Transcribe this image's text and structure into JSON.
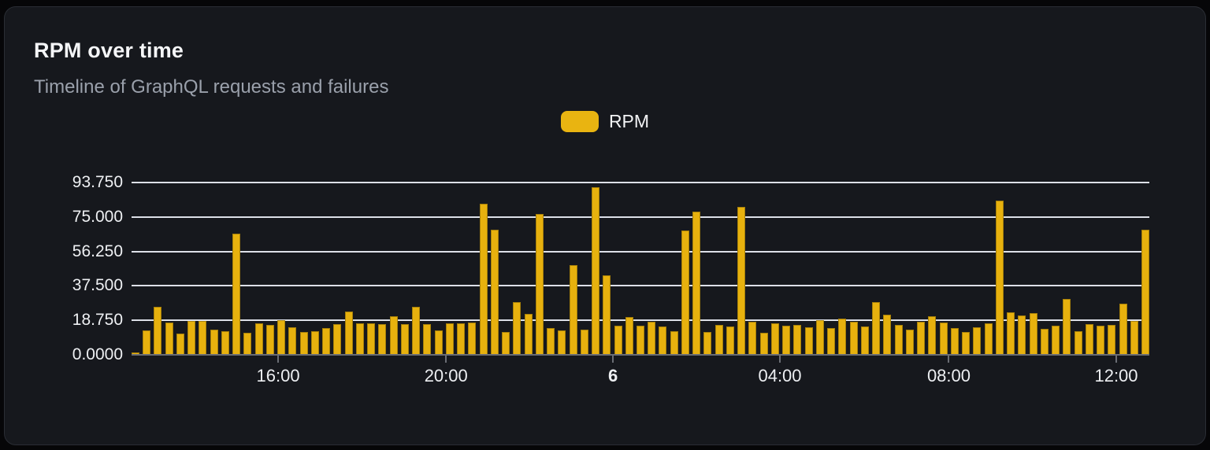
{
  "header": {
    "title": "RPM over time",
    "subtitle": "Timeline of GraphQL requests and failures"
  },
  "legend": {
    "items": [
      {
        "label": "RPM",
        "color": "#e9b411"
      }
    ]
  },
  "colors": {
    "card_background": "#16181d",
    "card_border": "#2a2d34",
    "page_background": "#060608",
    "bar": "#e7b10e",
    "gridline": "#dde0e8",
    "axis_line": "#6a6d74",
    "title_text": "#f5f6f8",
    "subtitle_text": "#9aa0ab"
  },
  "chart_data": {
    "type": "bar",
    "title": "RPM over time",
    "xlabel": "",
    "ylabel": "",
    "ylim": [
      0,
      93.75
    ],
    "grid": true,
    "legend_position": "top-center",
    "bar_color": "#e7b10e",
    "y_ticks": [
      {
        "label": "0.0000",
        "value": 0
      },
      {
        "label": "18.750",
        "value": 18.75
      },
      {
        "label": "37.500",
        "value": 37.5
      },
      {
        "label": "56.250",
        "value": 56.25
      },
      {
        "label": "75.000",
        "value": 75.0
      },
      {
        "label": "93.750",
        "value": 93.75
      }
    ],
    "x_ticks": [
      {
        "label": "16:00",
        "pos": 0.144,
        "bold": false
      },
      {
        "label": "20:00",
        "pos": 0.309,
        "bold": false
      },
      {
        "label": "6",
        "pos": 0.473,
        "bold": true
      },
      {
        "label": "04:00",
        "pos": 0.637,
        "bold": false
      },
      {
        "label": "08:00",
        "pos": 0.803,
        "bold": false
      },
      {
        "label": "12:00",
        "pos": 0.9675,
        "bold": false
      }
    ],
    "series": [
      {
        "name": "RPM",
        "values": [
          1.5,
          13.2,
          26.2,
          17.5,
          11.7,
          18.3,
          18.5,
          13.6,
          12.9,
          65.8,
          12.1,
          17.2,
          16.2,
          18.9,
          15.2,
          12.4,
          12.8,
          14.6,
          16.6,
          23.6,
          17.0,
          17.3,
          16.7,
          20.8,
          16.7,
          26.2,
          16.7,
          13.2,
          17.3,
          17.3,
          17.4,
          82.4,
          67.9,
          12.4,
          28.7,
          22.2,
          76.6,
          14.6,
          13.4,
          48.8,
          13.6,
          91.2,
          43.3,
          15.8,
          20.6,
          15.8,
          17.8,
          15.3,
          13.0,
          67.7,
          78.1,
          12.4,
          16.1,
          15.4,
          80.3,
          18.2,
          12.2,
          17.1,
          15.7,
          16.3,
          15.1,
          19.0,
          14.6,
          19.5,
          18.1,
          15.3,
          28.7,
          21.9,
          16.1,
          13.9,
          18.0,
          20.8,
          17.5,
          14.4,
          12.3,
          14.8,
          17.3,
          83.9,
          23.1,
          21.2,
          22.8,
          14.3,
          15.8,
          30.4,
          13.0,
          16.8,
          16.0,
          16.4,
          27.9,
          18.5,
          68.0
        ]
      }
    ]
  }
}
